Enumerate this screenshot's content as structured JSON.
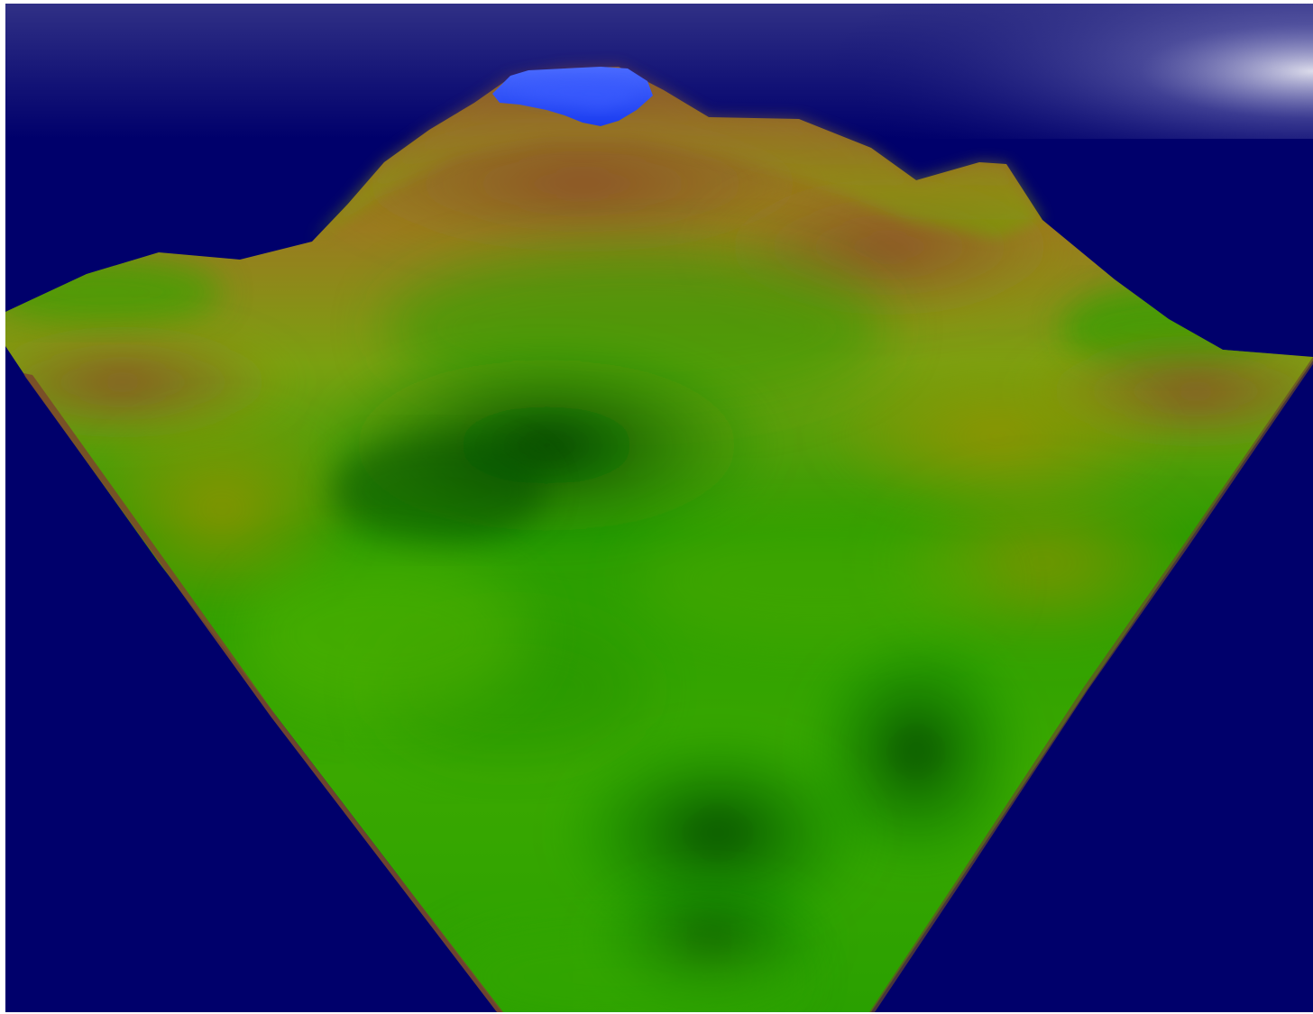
{
  "scene": {
    "background_color": "#00006b",
    "sky_glow_color": "#ffffff",
    "terrain_colors": {
      "lowland_dark_green": "#004d00",
      "lowland_green": "#1fa000",
      "meadow_green": "#52b000",
      "midland_olive": "#9aa000",
      "highland_brown": "#8a4f2a",
      "summit_blue": "#2a52ff"
    },
    "elements": [
      "sky-glow",
      "terrain-surface",
      "mountain-ridge",
      "summit-cap",
      "lowland-basin",
      "terrain-edge"
    ]
  }
}
